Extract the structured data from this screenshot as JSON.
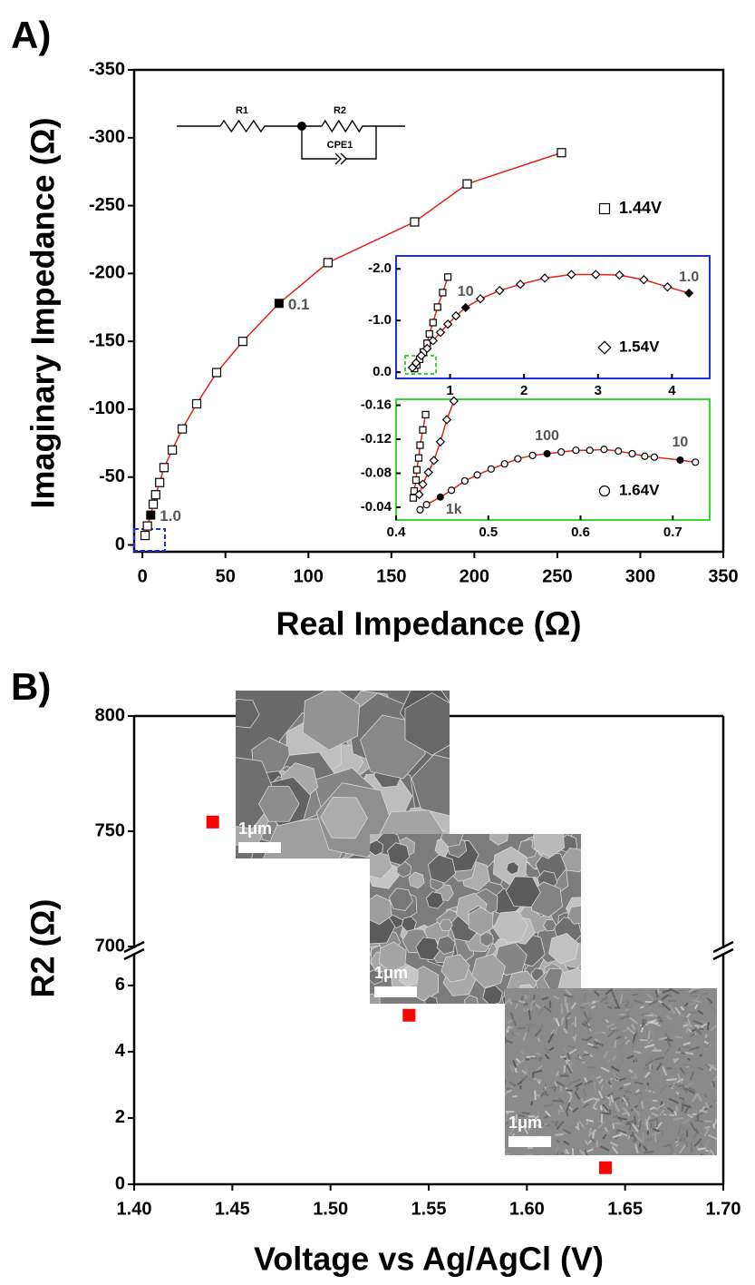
{
  "chart_data": [
    {
      "type": "scatter",
      "panel_label": "A)",
      "x_label": "Real Impedance (Ω)",
      "y_label": "Imaginary Impedance (Ω)",
      "xlim": [
        -5,
        350
      ],
      "ylim": [
        5,
        -350
      ],
      "xticks": [
        0,
        50,
        100,
        150,
        200,
        250,
        300,
        350
      ],
      "yticks": [
        0,
        -50,
        -100,
        -150,
        -200,
        -250,
        -300,
        -350
      ],
      "frame_color": "#000000",
      "fit_color": "#e3201b",
      "legend": "right",
      "circuit": [
        "R1",
        "R2",
        "CPE1"
      ],
      "series": [
        {
          "name": "1.44V",
          "marker": "square",
          "color": "#000000",
          "fit": true,
          "x": [
            1.6,
            3,
            5,
            6.5,
            8,
            10.4,
            13,
            18,
            24,
            32.7,
            44.7,
            60.5,
            82.3,
            111.8,
            164,
            195.7,
            252.5
          ],
          "values": [
            -7,
            -14,
            -22,
            -30,
            -37,
            -46,
            -57,
            -70,
            -85.5,
            -104,
            -127,
            -150,
            -178,
            -208,
            -238,
            -266,
            -289
          ],
          "point_labels": [
            null,
            null,
            "1.0",
            null,
            null,
            null,
            null,
            null,
            null,
            null,
            null,
            null,
            "0.1",
            null,
            null,
            null,
            null
          ]
        }
      ]
    },
    {
      "type": "scatter",
      "xlim": [
        0.27,
        4.51
      ],
      "ylim": [
        0.12,
        -2.25
      ],
      "xticks": [
        1,
        2,
        3,
        4
      ],
      "yticks": [
        {
          "value": 0,
          "label": "0.0"
        },
        {
          "value": -1,
          "label": "-1.0"
        },
        {
          "value": -2,
          "label": "-2.0"
        }
      ],
      "frame_color": "#1f2fe0",
      "fit_color": "#e3201b",
      "legend": "right",
      "series": [
        {
          "marker": "square",
          "color": "#000000",
          "fit": true,
          "x": [
            0.52,
            0.55,
            0.59,
            0.64,
            0.69,
            0.72,
            0.77,
            0.83,
            0.9,
            0.97
          ],
          "values": [
            -0.07,
            -0.14,
            -0.25,
            -0.39,
            -0.56,
            -0.74,
            -0.96,
            -1.26,
            -1.54,
            -1.84
          ]
        },
        {
          "name": "1.54V",
          "marker": "diamond",
          "color": "#000000",
          "fit": true,
          "x": [
            0.49,
            0.54,
            0.61,
            0.69,
            0.77,
            0.87,
            0.97,
            1.08,
            1.21,
            1.41,
            1.67,
            1.95,
            2.28,
            2.64,
            2.97,
            3.29,
            3.62,
            3.94,
            4.23
          ],
          "values": [
            -0.09,
            -0.18,
            -0.32,
            -0.46,
            -0.61,
            -0.77,
            -0.93,
            -1.09,
            -1.25,
            -1.42,
            -1.58,
            -1.7,
            -1.82,
            -1.89,
            -1.89,
            -1.88,
            -1.79,
            -1.65,
            -1.53
          ],
          "point_labels": [
            null,
            null,
            null,
            null,
            null,
            null,
            null,
            null,
            "10",
            null,
            null,
            null,
            null,
            null,
            null,
            null,
            null,
            null,
            "1.0"
          ]
        }
      ]
    },
    {
      "type": "scatter",
      "xlim": [
        0.4,
        0.74
      ],
      "ylim": [
        -0.025,
        -0.167
      ],
      "xticks": [
        0.4,
        0.5,
        0.6,
        0.7
      ],
      "yticks": [
        -0.04,
        -0.08,
        -0.12,
        -0.16
      ],
      "frame_color": "#33d833",
      "fit_color": "#e3201b",
      "legend": "right",
      "series": [
        {
          "marker": "square",
          "color": "#000000",
          "fit": true,
          "x": [
            0.4186,
            0.4196,
            0.4216,
            0.4225,
            0.4245,
            0.426,
            0.429,
            0.432
          ],
          "values": [
            -0.051,
            -0.059,
            -0.072,
            -0.084,
            -0.098,
            -0.113,
            -0.131,
            -0.149
          ]
        },
        {
          "marker": "diamond",
          "color": "#000000",
          "fit": true,
          "x": [
            0.425,
            0.429,
            0.435,
            0.441,
            0.448,
            0.455,
            0.4627
          ],
          "values": [
            -0.055,
            -0.067,
            -0.081,
            -0.095,
            -0.117,
            -0.143,
            -0.165
          ]
        },
        {
          "name": "1.64V",
          "marker": "circle",
          "color": "#000000",
          "fit": true,
          "x": [
            0.426,
            0.433,
            0.448,
            0.46,
            0.4745,
            0.488,
            0.503,
            0.5176,
            0.532,
            0.548,
            0.5637,
            0.579,
            0.595,
            0.61,
            0.6255,
            0.641,
            0.656,
            0.6696,
            0.68,
            0.708,
            0.7245
          ],
          "values": [
            -0.037,
            -0.043,
            -0.052,
            -0.06,
            -0.071,
            -0.078,
            -0.085,
            -0.091,
            -0.097,
            -0.101,
            -0.103,
            -0.105,
            -0.107,
            -0.107,
            -0.108,
            -0.106,
            -0.103,
            -0.1,
            -0.099,
            -0.0955,
            -0.093
          ],
          "point_labels": [
            null,
            null,
            "1k",
            null,
            null,
            null,
            null,
            null,
            null,
            null,
            "100",
            null,
            null,
            null,
            null,
            null,
            null,
            null,
            null,
            "10",
            null
          ]
        }
      ]
    },
    {
      "type": "scatter",
      "panel_label": "B)",
      "x_label": "Voltage vs Ag/AgCl (V)",
      "y_label": "R2 (Ω)",
      "xlim": [
        1.4,
        1.7
      ],
      "xticks": [
        {
          "value": 1.4,
          "label": "1.40"
        },
        {
          "value": 1.45,
          "label": "1.45"
        },
        {
          "value": 1.5,
          "label": "1.50"
        },
        {
          "value": 1.55,
          "label": "1.55"
        },
        {
          "value": 1.6,
          "label": "1.60"
        },
        {
          "value": 1.65,
          "label": "1.65"
        },
        {
          "value": 1.7,
          "label": "1.70"
        }
      ],
      "y_segments": [
        {
          "ylim": [
            0,
            6.9
          ],
          "yticks": [
            0,
            2,
            4,
            6
          ]
        },
        {
          "ylim": [
            700,
            800
          ],
          "yticks": [
            700,
            750,
            800
          ]
        }
      ],
      "frame_color": "#000000",
      "image_labels": [
        "1μm",
        "1μm",
        "1μm"
      ],
      "series": [
        {
          "marker": "square",
          "color": "#ff0000",
          "filled": true,
          "x": [
            1.44,
            1.54,
            1.64
          ],
          "values": [
            754,
            5.1,
            0.5
          ]
        }
      ]
    }
  ]
}
